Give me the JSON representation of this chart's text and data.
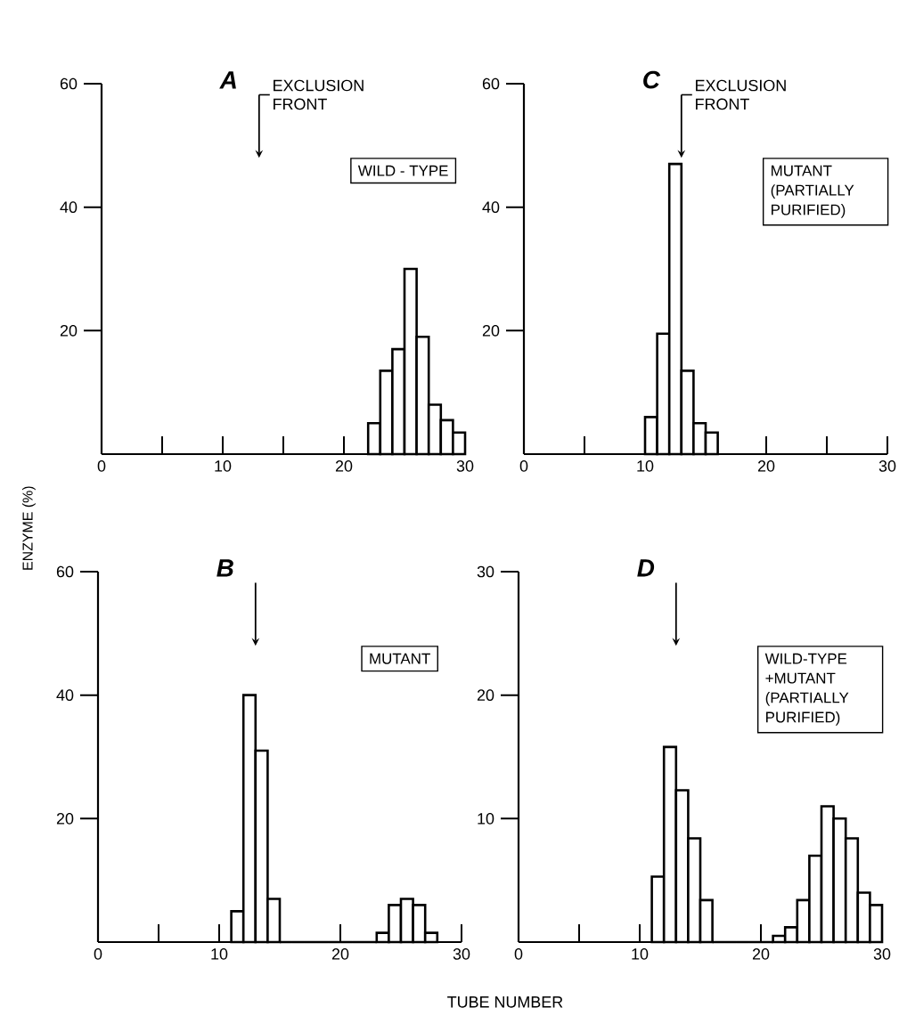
{
  "chart_data": [
    {
      "type": "histogram",
      "title": "A",
      "ylabel": "ENZYME (%)",
      "bins": [
        22,
        23,
        24,
        25,
        26,
        27,
        28,
        29,
        30
      ],
      "values": [
        5,
        13.5,
        17,
        30,
        19,
        8,
        5.5,
        3.5
      ],
      "color": "#000000",
      "xlim": [
        0,
        30
      ],
      "ylim": [
        0,
        60
      ],
      "xticks": [
        0,
        {
          "value": 5,
          "label": null
        },
        10,
        {
          "value": 15,
          "label": null
        },
        20,
        {
          "value": 25,
          "label": null
        },
        30
      ],
      "yticks": [
        20,
        40,
        60
      ],
      "ref_lines": [
        {
          "axis": "x",
          "value": 13,
          "label": "EXCLUSION FRONT"
        }
      ],
      "annotations": [
        "WILD - TYPE"
      ],
      "grid": false
    },
    {
      "type": "histogram",
      "title": "C",
      "bins": [
        10,
        11,
        12,
        13,
        14,
        15,
        16
      ],
      "values": [
        6,
        19.5,
        47,
        13.5,
        5,
        3.5
      ],
      "color": "#000000",
      "xlim": [
        0,
        30
      ],
      "ylim": [
        0,
        60
      ],
      "xticks": [
        0,
        {
          "value": 5,
          "label": null
        },
        10,
        {
          "value": 15,
          "label": null
        },
        20,
        {
          "value": 25,
          "label": null
        },
        30
      ],
      "yticks": [
        20,
        40,
        60
      ],
      "ref_lines": [
        {
          "axis": "x",
          "value": 13,
          "label": "EXCLUSION FRONT"
        }
      ],
      "annotations": [
        "MUTANT (PARTIALLY PURIFIED)"
      ],
      "grid": false
    },
    {
      "type": "histogram",
      "title": "B",
      "xlabel": "TUBE NUMBER",
      "bins": [
        11,
        12,
        13,
        14,
        15,
        16,
        17,
        18,
        19,
        20,
        21,
        22,
        23,
        24,
        25,
        26,
        27,
        28
      ],
      "values": [
        5,
        40,
        31,
        7,
        0,
        0,
        0,
        0,
        0,
        0,
        0,
        0,
        1.5,
        6,
        7,
        6,
        1.5
      ],
      "color": "#000000",
      "xlim": [
        0,
        30
      ],
      "ylim": [
        0,
        60
      ],
      "xticks": [
        0,
        {
          "value": 5,
          "label": null
        },
        10,
        {
          "value": 15,
          "label": null
        },
        20,
        {
          "value": 25,
          "label": null
        },
        30
      ],
      "yticks": [
        20,
        40,
        60
      ],
      "ref_lines": [
        {
          "axis": "x",
          "value": 13
        }
      ],
      "annotations": [
        "MUTANT"
      ],
      "grid": false
    },
    {
      "type": "histogram",
      "title": "D",
      "bins": [
        11,
        12,
        13,
        14,
        15,
        16,
        17,
        18,
        19,
        20,
        21,
        22,
        23,
        24,
        25,
        26,
        27,
        28,
        29,
        30
      ],
      "values": [
        5.3,
        15.8,
        12.3,
        8.4,
        3.4,
        0,
        0,
        0,
        0,
        0,
        0.5,
        1.2,
        3.4,
        7,
        11,
        10,
        8.4,
        4,
        3
      ],
      "color": "#000000",
      "xlim": [
        0,
        30
      ],
      "ylim": [
        0,
        30
      ],
      "xticks": [
        0,
        {
          "value": 5,
          "label": null
        },
        10,
        {
          "value": 15,
          "label": null
        },
        20,
        {
          "value": 25,
          "label": null
        },
        30
      ],
      "yticks": [
        10,
        20,
        30
      ],
      "ref_lines": [
        {
          "axis": "x",
          "value": 13
        }
      ],
      "annotations": [
        "WILD-TYPE +MUTANT (PARTIALLY PURIFIED)"
      ],
      "grid": false
    }
  ]
}
